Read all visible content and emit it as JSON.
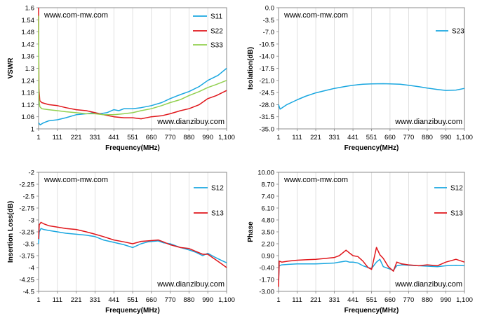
{
  "chart_data": [
    {
      "type": "line",
      "title": "",
      "xlabel": "Frequency(MHz)",
      "ylabel": "VSWR",
      "watermark_top": "www.com-mw.com",
      "watermark_bottom": "www.dianzibuy.com",
      "x_ticks": [
        "1",
        "111",
        "221",
        "331",
        "441",
        "551",
        "660",
        "770",
        "880",
        "990",
        "1,100"
      ],
      "xlim": [
        1,
        1100
      ],
      "y_ticks": [
        "1",
        "1.06",
        "1.12",
        "1.18",
        "1.24",
        "1.3",
        "1.36",
        "1.42",
        "1.48",
        "1.54",
        "1.6"
      ],
      "ylim": [
        1,
        1.6
      ],
      "grid": "vertical",
      "legend": "top-right",
      "colors": {
        "S11": "#1aa7e0",
        "S22": "#e0161b",
        "S33": "#92d050"
      },
      "series": [
        {
          "name": "S11",
          "color": "#1aa7e0",
          "x": [
            1,
            10,
            30,
            60,
            111,
            160,
            221,
            280,
            331,
            360,
            400,
            441,
            470,
            500,
            551,
            600,
            660,
            720,
            770,
            830,
            880,
            940,
            990,
            1050,
            1100
          ],
          "y": [
            1.03,
            1.02,
            1.03,
            1.04,
            1.045,
            1.055,
            1.07,
            1.075,
            1.08,
            1.075,
            1.08,
            1.095,
            1.09,
            1.1,
            1.1,
            1.105,
            1.115,
            1.13,
            1.15,
            1.17,
            1.185,
            1.21,
            1.24,
            1.265,
            1.3
          ]
        },
        {
          "name": "S22",
          "color": "#e0161b",
          "x": [
            1,
            3,
            8,
            20,
            60,
            111,
            160,
            221,
            280,
            331,
            380,
            441,
            500,
            551,
            600,
            660,
            720,
            770,
            830,
            880,
            940,
            990,
            1040,
            1100
          ],
          "y": [
            1.6,
            1.2,
            1.14,
            1.13,
            1.12,
            1.115,
            1.105,
            1.095,
            1.09,
            1.08,
            1.07,
            1.06,
            1.055,
            1.055,
            1.05,
            1.06,
            1.065,
            1.075,
            1.09,
            1.1,
            1.12,
            1.15,
            1.165,
            1.19
          ]
        },
        {
          "name": "S33",
          "color": "#92d050",
          "x": [
            1,
            3,
            8,
            20,
            60,
            111,
            160,
            221,
            280,
            331,
            380,
            441,
            500,
            551,
            600,
            660,
            720,
            770,
            830,
            880,
            940,
            990,
            1040,
            1100
          ],
          "y": [
            1.56,
            1.15,
            1.11,
            1.1,
            1.095,
            1.09,
            1.085,
            1.08,
            1.075,
            1.075,
            1.07,
            1.07,
            1.075,
            1.08,
            1.09,
            1.1,
            1.115,
            1.13,
            1.145,
            1.165,
            1.185,
            1.205,
            1.22,
            1.24
          ]
        }
      ]
    },
    {
      "type": "line",
      "title": "",
      "xlabel": "Frequency(MHz)",
      "ylabel": "Isolation(dB)",
      "watermark_top": "www.com-mw.com",
      "watermark_bottom": "www.dianzibuy.com",
      "x_ticks": [
        "1",
        "111",
        "221",
        "331",
        "441",
        "551",
        "660",
        "770",
        "880",
        "990",
        "1,100"
      ],
      "xlim": [
        1,
        1100
      ],
      "y_ticks": [
        "-35.0",
        "-31.5",
        "-28.0",
        "-24.5",
        "-21.0",
        "-17.5",
        "-14.0",
        "-10.5",
        "-7.0",
        "-3.5",
        "0.0"
      ],
      "ylim": [
        -35,
        0
      ],
      "grid": "vertical",
      "legend": "top-right",
      "colors": {
        "S23": "#1aa7e0"
      },
      "series": [
        {
          "name": "S23",
          "color": "#1aa7e0",
          "x": [
            1,
            10,
            20,
            50,
            111,
            160,
            221,
            280,
            331,
            400,
            441,
            500,
            551,
            620,
            660,
            720,
            770,
            830,
            880,
            940,
            990,
            1050,
            1100
          ],
          "y": [
            -28.0,
            -29.3,
            -29.0,
            -28.0,
            -26.6,
            -25.6,
            -24.6,
            -23.9,
            -23.3,
            -22.7,
            -22.4,
            -22.1,
            -22.0,
            -21.95,
            -22.0,
            -22.1,
            -22.4,
            -22.8,
            -23.2,
            -23.6,
            -23.9,
            -23.8,
            -23.3
          ]
        }
      ]
    },
    {
      "type": "line",
      "title": "",
      "xlabel": "Frequency(MHz)",
      "ylabel": "Insertion Loss(dB)",
      "watermark_top": "www.com-mw.com",
      "watermark_bottom": "www.dianzibuy.com",
      "x_ticks": [
        "1",
        "111",
        "221",
        "331",
        "441",
        "551",
        "660",
        "770",
        "880",
        "990",
        "1,100"
      ],
      "xlim": [
        1,
        1100
      ],
      "y_ticks": [
        "-4.5",
        "-4.25",
        "-4",
        "-3.75",
        "-3.5",
        "-3.25",
        "-3",
        "-2.75",
        "-2.5",
        "-2.25",
        "-2"
      ],
      "ylim": [
        -4.5,
        -2
      ],
      "grid": "vertical",
      "legend": "right",
      "colors": {
        "S12": "#1aa7e0",
        "S13": "#e0161b"
      },
      "series": [
        {
          "name": "S12",
          "color": "#1aa7e0",
          "x": [
            1,
            5,
            15,
            30,
            60,
            111,
            160,
            221,
            280,
            331,
            380,
            441,
            500,
            551,
            600,
            640,
            700,
            730,
            770,
            830,
            880,
            920,
            960,
            990,
            1030,
            1070,
            1100
          ],
          "y": [
            -3.5,
            -3.25,
            -3.18,
            -3.2,
            -3.22,
            -3.25,
            -3.28,
            -3.3,
            -3.32,
            -3.35,
            -3.42,
            -3.47,
            -3.52,
            -3.58,
            -3.5,
            -3.46,
            -3.44,
            -3.48,
            -3.5,
            -3.58,
            -3.63,
            -3.68,
            -3.75,
            -3.7,
            -3.78,
            -3.85,
            -3.9
          ]
        },
        {
          "name": "S13",
          "color": "#e0161b",
          "x": [
            1,
            5,
            15,
            30,
            60,
            111,
            160,
            221,
            280,
            331,
            380,
            441,
            500,
            551,
            600,
            640,
            700,
            730,
            770,
            830,
            880,
            920,
            960,
            990,
            1030,
            1070,
            1100
          ],
          "y": [
            -3.4,
            -3.1,
            -3.05,
            -3.08,
            -3.12,
            -3.15,
            -3.18,
            -3.2,
            -3.25,
            -3.3,
            -3.35,
            -3.42,
            -3.46,
            -3.5,
            -3.45,
            -3.44,
            -3.42,
            -3.46,
            -3.52,
            -3.58,
            -3.6,
            -3.66,
            -3.72,
            -3.72,
            -3.82,
            -3.92,
            -4.0
          ]
        }
      ]
    },
    {
      "type": "line",
      "title": "",
      "xlabel": "Frequency(MHz)",
      "ylabel": "Phase",
      "watermark_top": "www.com-mw.com",
      "watermark_bottom": "www.dianzibuy.com",
      "x_ticks": [
        "1",
        "111",
        "221",
        "331",
        "441",
        "551",
        "660",
        "770",
        "880",
        "990",
        "1,100"
      ],
      "xlim": [
        1,
        1100
      ],
      "y_ticks": [
        "-3.00",
        "-1.70",
        "-0.40",
        "0.90",
        "2.20",
        "3.50",
        "4.80",
        "6.10",
        "7.40",
        "8.70",
        "10.00"
      ],
      "ylim": [
        -3,
        10
      ],
      "grid": "vertical",
      "legend": "right",
      "colors": {
        "S12": "#1aa7e0",
        "S13": "#e0161b"
      },
      "series": [
        {
          "name": "S12",
          "color": "#1aa7e0",
          "x": [
            1,
            5,
            20,
            60,
            111,
            160,
            221,
            280,
            331,
            360,
            400,
            420,
            441,
            470,
            500,
            530,
            551,
            580,
            600,
            620,
            650,
            680,
            700,
            730,
            770,
            830,
            880,
            940,
            990,
            1050,
            1100
          ],
          "y": [
            -1.8,
            -0.2,
            -0.1,
            -0.05,
            0.0,
            0.0,
            0.0,
            0.05,
            0.1,
            0.2,
            0.3,
            0.2,
            0.2,
            0.1,
            -0.2,
            -0.4,
            -0.5,
            0.2,
            0.5,
            -0.3,
            -0.5,
            -0.7,
            -0.2,
            -0.1,
            -0.15,
            -0.2,
            -0.25,
            -0.3,
            -0.2,
            -0.15,
            -0.2
          ]
        },
        {
          "name": "S13",
          "color": "#e0161b",
          "x": [
            1,
            5,
            20,
            60,
            111,
            160,
            221,
            280,
            331,
            360,
            400,
            420,
            441,
            470,
            500,
            530,
            551,
            580,
            600,
            620,
            650,
            680,
            700,
            730,
            770,
            830,
            880,
            940,
            990,
            1050,
            1100
          ],
          "y": [
            -2.5,
            0.3,
            0.2,
            0.3,
            0.4,
            0.45,
            0.5,
            0.6,
            0.7,
            0.9,
            1.5,
            1.2,
            0.9,
            0.8,
            0.3,
            -0.4,
            -0.6,
            1.8,
            1.0,
            0.6,
            -0.3,
            -0.8,
            0.2,
            0.0,
            -0.1,
            -0.2,
            -0.1,
            -0.2,
            0.2,
            0.5,
            0.2
          ]
        }
      ]
    }
  ]
}
